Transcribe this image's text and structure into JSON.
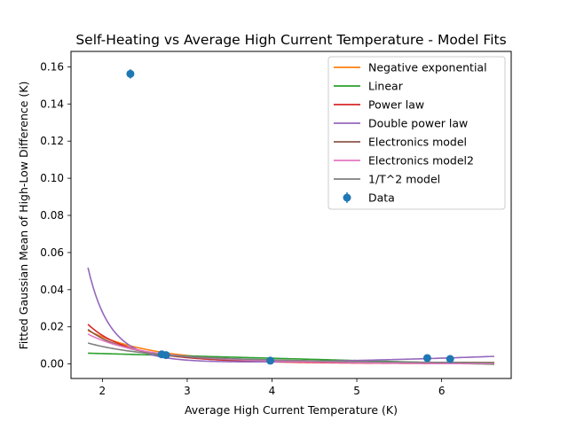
{
  "chart_data": {
    "type": "line",
    "title": "Self-Heating vs Average High Current Temperature - Model Fits",
    "xlabel": "Average High Current Temperature (K)",
    "ylabel": "Fitted Gaussian Mean of High-Low Difference (K)",
    "xlim": [
      1.63,
      6.82
    ],
    "ylim": [
      -0.0078,
      0.1683
    ],
    "x_ticks": [
      2,
      3,
      4,
      5,
      6
    ],
    "y_ticks": [
      0.0,
      0.02,
      0.04,
      0.06,
      0.08,
      0.1,
      0.12,
      0.14,
      0.16
    ],
    "y_tick_labels": [
      "0.00",
      "0.02",
      "0.04",
      "0.06",
      "0.08",
      "0.10",
      "0.12",
      "0.14",
      "0.16"
    ],
    "legend_position": "top-right",
    "grid": false,
    "fit_x_range": [
      1.83,
      6.62
    ],
    "series": [
      {
        "name": "Negative exponential",
        "color": "#ff7f0e",
        "model": {
          "kind": "exp",
          "a": 0.0172,
          "b": 1.3,
          "c": 0.0008
        }
      },
      {
        "name": "Linear",
        "color": "#2ca02c",
        "model": {
          "kind": "linear",
          "m": -0.00125,
          "b": 0.0081
        }
      },
      {
        "name": "Power law",
        "color": "#d62728",
        "model": {
          "kind": "power",
          "a": 0.2,
          "p": 3.7,
          "c": 0.0
        }
      },
      {
        "name": "Double power law",
        "color": "#9467bd",
        "model": {
          "kind": "dpower",
          "a": 3.56,
          "p": 7.0,
          "b": 2.07e-05,
          "q": 2.8
        }
      },
      {
        "name": "Electronics model",
        "color": "#8c564b",
        "model": {
          "kind": "power",
          "a": 0.15,
          "p": 3.5,
          "c": 0.0005
        }
      },
      {
        "name": "Electronics model2",
        "color": "#e377c2",
        "model": {
          "kind": "power",
          "a": 0.08,
          "p": 2.6,
          "c": -0.0005
        }
      },
      {
        "name": "1/T^2 model",
        "color": "#7f7f7f",
        "model": {
          "kind": "power",
          "a": 0.0385,
          "p": 2.0,
          "c": -0.0002
        }
      }
    ],
    "data_points": {
      "name": "Data",
      "color": "#1f77b4",
      "x": [
        2.33,
        2.7,
        2.75,
        3.98,
        5.83,
        6.1
      ],
      "y": [
        0.1562,
        0.0052,
        0.0048,
        0.0018,
        0.0032,
        0.0027
      ],
      "yerr": [
        0.0025,
        0.0008,
        0.0008,
        0.0006,
        0.0008,
        0.0007
      ]
    }
  }
}
